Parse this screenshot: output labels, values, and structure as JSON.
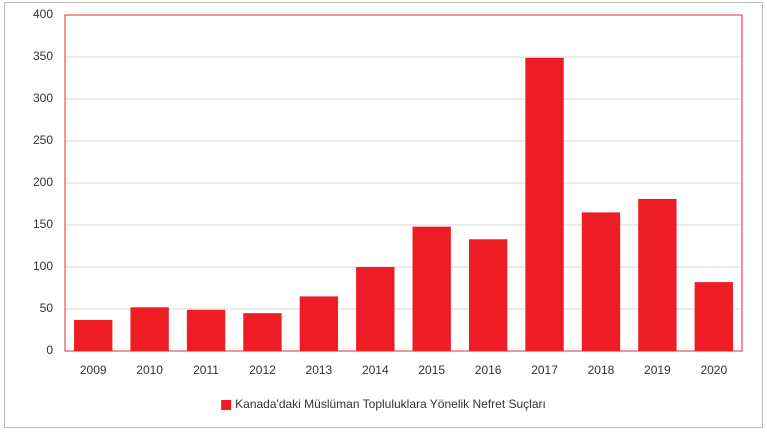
{
  "chart_data": {
    "type": "bar",
    "categories": [
      "2009",
      "2010",
      "2011",
      "2012",
      "2013",
      "2014",
      "2015",
      "2016",
      "2017",
      "2018",
      "2019",
      "2020"
    ],
    "series": [
      {
        "name": "Kanada'daki Müslüman Topluluklara Yönelik Nefret Suçları",
        "color": "#ee1c25",
        "values": [
          37,
          52,
          49,
          45,
          65,
          100,
          148,
          133,
          349,
          165,
          181,
          82
        ]
      }
    ],
    "ylim": [
      0,
      400
    ],
    "yticks": [
      0,
      50,
      100,
      150,
      200,
      250,
      300,
      350,
      400
    ],
    "grid": true,
    "legend": "bottom"
  }
}
